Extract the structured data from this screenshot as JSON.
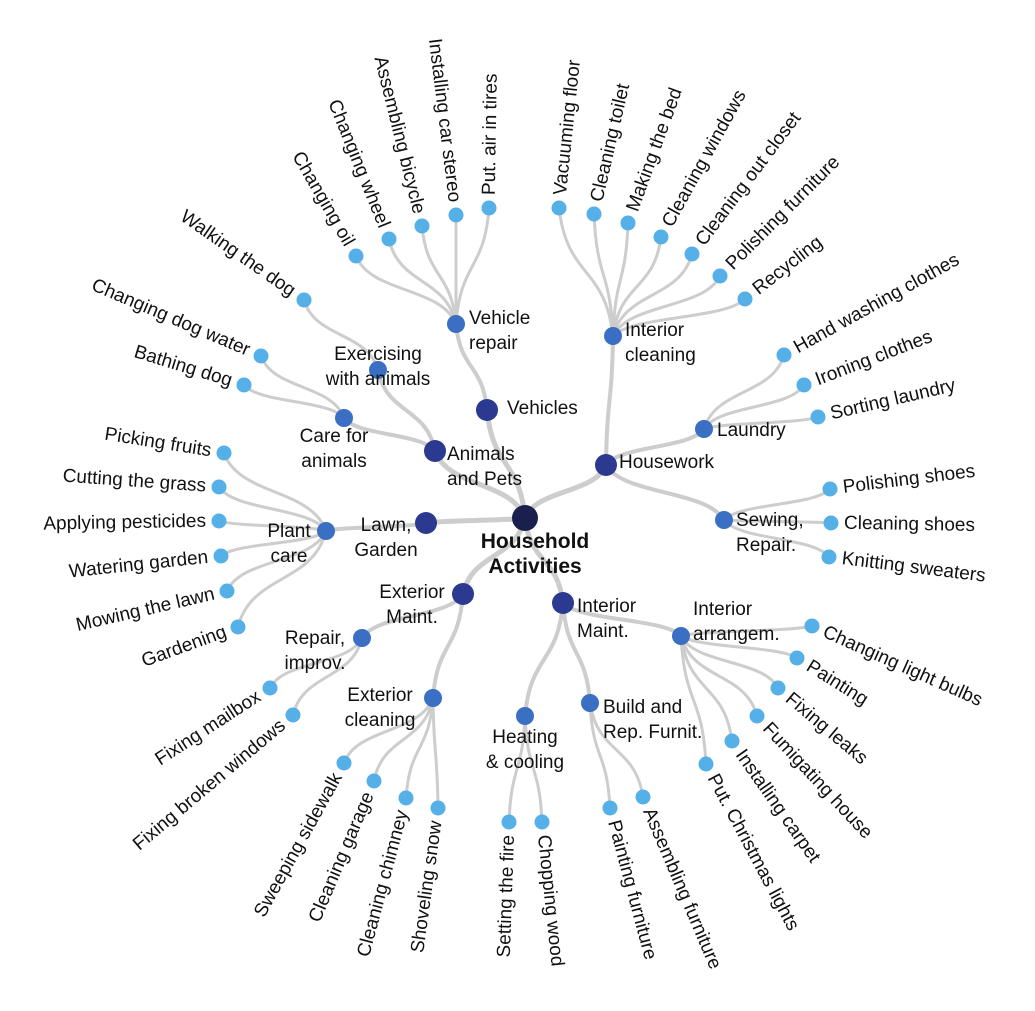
{
  "diagram": {
    "root": {
      "id": "root",
      "lines": [
        "Household",
        "Activities"
      ]
    },
    "level1": [
      {
        "id": "vehicles",
        "lines": [
          "Vehicles"
        ]
      },
      {
        "id": "animals",
        "lines": [
          "Animals",
          "and Pets"
        ]
      },
      {
        "id": "lawn",
        "lines": [
          "Lawn,",
          "Garden"
        ]
      },
      {
        "id": "exterior",
        "lines": [
          "Exterior",
          "Maint."
        ]
      },
      {
        "id": "interior",
        "lines": [
          "Interior",
          "Maint."
        ]
      },
      {
        "id": "housework",
        "lines": [
          "Housework"
        ]
      }
    ],
    "level2": [
      {
        "id": "vehicle-repair",
        "parent": "vehicles",
        "lines": [
          "Vehicle",
          "repair"
        ]
      },
      {
        "id": "exercising",
        "parent": "animals",
        "lines": [
          "Exercising",
          "with animals"
        ]
      },
      {
        "id": "care",
        "parent": "animals",
        "lines": [
          "Care for",
          "animals"
        ]
      },
      {
        "id": "plant-care",
        "parent": "lawn",
        "lines": [
          "Plant",
          "care"
        ]
      },
      {
        "id": "repair-improv",
        "parent": "exterior",
        "lines": [
          "Repair,",
          "improv."
        ]
      },
      {
        "id": "exterior-cleaning",
        "parent": "exterior",
        "lines": [
          "Exterior",
          "cleaning"
        ]
      },
      {
        "id": "heating",
        "parent": "interior",
        "lines": [
          "Heating",
          "& cooling"
        ]
      },
      {
        "id": "build-rep",
        "parent": "interior",
        "lines": [
          "Build and",
          "Rep. Furnit."
        ]
      },
      {
        "id": "interior-arrangem",
        "parent": "interior",
        "lines": [
          "Interior",
          "arrangem."
        ]
      },
      {
        "id": "interior-cleaning",
        "parent": "housework",
        "lines": [
          "Interior",
          "cleaning"
        ]
      },
      {
        "id": "laundry",
        "parent": "housework",
        "lines": [
          "Laundry"
        ]
      },
      {
        "id": "sewing",
        "parent": "housework",
        "lines": [
          "Sewing,",
          "Repair."
        ]
      }
    ],
    "leaves": [
      {
        "parent": "vehicle-repair",
        "label": "Changing oil"
      },
      {
        "parent": "vehicle-repair",
        "label": "Changing wheel"
      },
      {
        "parent": "vehicle-repair",
        "label": "Assembling bicycle"
      },
      {
        "parent": "vehicle-repair",
        "label": "Installing car stereo"
      },
      {
        "parent": "vehicle-repair",
        "label": "Put. air in tires"
      },
      {
        "parent": "exercising",
        "label": "Walking the dog"
      },
      {
        "parent": "care",
        "label": "Changing dog water"
      },
      {
        "parent": "care",
        "label": "Bathing dog"
      },
      {
        "parent": "plant-care",
        "label": "Picking fruits"
      },
      {
        "parent": "plant-care",
        "label": "Cutting the grass"
      },
      {
        "parent": "plant-care",
        "label": "Applying pesticides"
      },
      {
        "parent": "plant-care",
        "label": "Watering garden"
      },
      {
        "parent": "plant-care",
        "label": "Mowing the lawn"
      },
      {
        "parent": "plant-care",
        "label": "Gardening"
      },
      {
        "parent": "repair-improv",
        "label": "Fixing mailbox"
      },
      {
        "parent": "repair-improv",
        "label": "Fixing broken windows"
      },
      {
        "parent": "exterior-cleaning",
        "label": "Sweeping sidewalk"
      },
      {
        "parent": "exterior-cleaning",
        "label": "Cleaning garage"
      },
      {
        "parent": "exterior-cleaning",
        "label": "Cleaning chimney"
      },
      {
        "parent": "exterior-cleaning",
        "label": "Shoveling snow"
      },
      {
        "parent": "heating",
        "label": "Setting the fire"
      },
      {
        "parent": "heating",
        "label": "Chopping wood"
      },
      {
        "parent": "build-rep",
        "label": "Painting furniture"
      },
      {
        "parent": "build-rep",
        "label": "Assembling furniture"
      },
      {
        "parent": "interior-arrangem",
        "label": "Put. Christmas lights"
      },
      {
        "parent": "interior-arrangem",
        "label": "Installing carpet"
      },
      {
        "parent": "interior-arrangem",
        "label": "Fumigating house"
      },
      {
        "parent": "interior-arrangem",
        "label": "Fixing leaks"
      },
      {
        "parent": "interior-arrangem",
        "label": "Painting"
      },
      {
        "parent": "interior-arrangem",
        "label": "Changing light bulbs"
      },
      {
        "parent": "interior-cleaning",
        "label": "Vacuuming floor"
      },
      {
        "parent": "interior-cleaning",
        "label": "Cleaning toilet"
      },
      {
        "parent": "interior-cleaning",
        "label": "Making the bed"
      },
      {
        "parent": "interior-cleaning",
        "label": "Cleaning windows"
      },
      {
        "parent": "interior-cleaning",
        "label": "Cleaning out closet"
      },
      {
        "parent": "interior-cleaning",
        "label": "Polishing furniture"
      },
      {
        "parent": "interior-cleaning",
        "label": "Recycling"
      },
      {
        "parent": "laundry",
        "label": "Hand washing clothes"
      },
      {
        "parent": "laundry",
        "label": "Ironing clothes"
      },
      {
        "parent": "laundry",
        "label": "Sorting laundry"
      },
      {
        "parent": "sewing",
        "label": "Polishing shoes"
      },
      {
        "parent": "sewing",
        "label": "Cleaning shoes"
      },
      {
        "parent": "sewing",
        "label": "Knitting sweaters"
      }
    ],
    "colors": {
      "root": "#1b1f4e",
      "level1": "#2b3990",
      "level2": "#3a6fc4",
      "leaf": "#55b0e8",
      "edge": "#cdcdcd"
    }
  }
}
